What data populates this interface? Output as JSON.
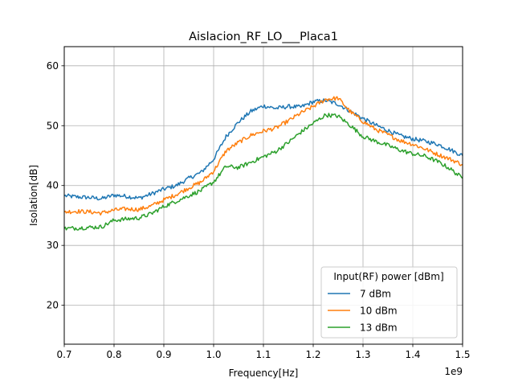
{
  "chart_data": {
    "type": "line",
    "title": "Aislacion_RF_LO___Placa1",
    "xlabel": "Frequency[Hz]",
    "ylabel": "Isolation[dB]",
    "x_offset_label": "1e9",
    "xlim": [
      0.7,
      1.5
    ],
    "ylim": [
      13.5,
      63.2
    ],
    "x_ticks": [
      0.7,
      0.8,
      0.9,
      1.0,
      1.1,
      1.2,
      1.3,
      1.4,
      1.5
    ],
    "x_tick_labels": [
      "0.7",
      "0.8",
      "0.9",
      "1.0",
      "1.1",
      "1.2",
      "1.3",
      "1.4",
      "1.5"
    ],
    "y_ticks": [
      20,
      30,
      40,
      50,
      60
    ],
    "y_tick_labels": [
      "20",
      "30",
      "40",
      "50",
      "60"
    ],
    "grid": true,
    "legend": {
      "title": "Input(RF) power [dBm]",
      "placement": "lower-right"
    },
    "x": [
      0.7,
      0.725,
      0.75,
      0.775,
      0.8,
      0.825,
      0.85,
      0.875,
      0.9,
      0.925,
      0.95,
      0.975,
      1.0,
      1.025,
      1.05,
      1.075,
      1.1,
      1.125,
      1.15,
      1.175,
      1.2,
      1.225,
      1.25,
      1.275,
      1.3,
      1.325,
      1.35,
      1.375,
      1.4,
      1.425,
      1.45,
      1.475,
      1.5
    ],
    "series": [
      {
        "name": "7 dBm",
        "color": "#1f77b4",
        "values": [
          38.3,
          38.1,
          38.0,
          37.8,
          38.4,
          38.2,
          37.9,
          38.6,
          39.4,
          40.0,
          41.2,
          42.2,
          44.4,
          48.2,
          50.6,
          52.4,
          53.3,
          52.9,
          53.2,
          53.1,
          54.0,
          54.2,
          53.6,
          52.4,
          51.2,
          50.1,
          49.2,
          48.3,
          47.8,
          47.4,
          46.9,
          46.0,
          45.0
        ]
      },
      {
        "name": "10 dBm",
        "color": "#ff7f0e",
        "values": [
          35.6,
          35.7,
          35.6,
          35.4,
          35.9,
          36.1,
          36.0,
          36.6,
          37.6,
          38.5,
          39.6,
          40.6,
          42.4,
          45.8,
          47.2,
          48.4,
          49.1,
          49.6,
          50.8,
          52.1,
          53.2,
          54.4,
          54.6,
          52.3,
          50.7,
          49.4,
          48.5,
          47.5,
          46.9,
          46.1,
          45.2,
          44.4,
          43.5
        ]
      },
      {
        "name": "13 dBm",
        "color": "#2ca02c",
        "values": [
          32.8,
          32.9,
          33.0,
          33.1,
          34.2,
          34.4,
          34.6,
          35.3,
          36.5,
          37.4,
          38.3,
          39.2,
          40.6,
          43.2,
          43.0,
          43.9,
          44.8,
          45.7,
          47.2,
          48.9,
          50.4,
          51.8,
          51.6,
          50.0,
          48.2,
          47.4,
          46.7,
          45.9,
          45.3,
          44.9,
          44.0,
          42.8,
          41.2
        ]
      }
    ]
  }
}
